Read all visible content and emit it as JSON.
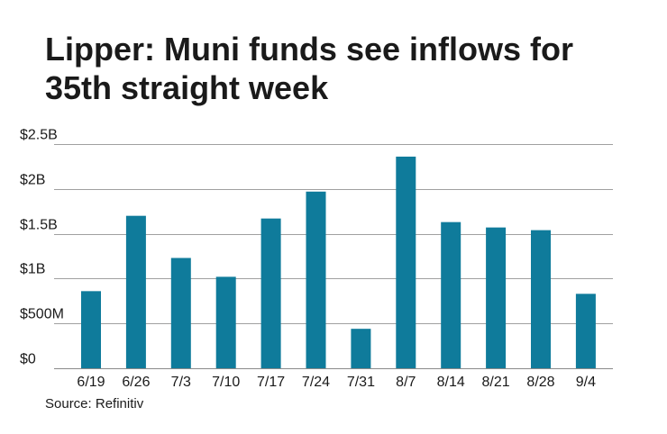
{
  "chart_data": {
    "type": "bar",
    "title": "Lipper: Muni funds see inflows for 35th straight week",
    "categories": [
      "6/19",
      "6/26",
      "7/3",
      "7/10",
      "7/17",
      "7/24",
      "7/31",
      "8/7",
      "8/14",
      "8/21",
      "8/28",
      "9/4"
    ],
    "values": [
      0.86,
      1.7,
      1.23,
      1.02,
      1.67,
      1.97,
      0.44,
      2.36,
      1.63,
      1.57,
      1.54,
      0.83
    ],
    "unit": "billions of dollars",
    "ylim": [
      0,
      2.5
    ],
    "yticks": [
      {
        "value": 0,
        "label": "$0"
      },
      {
        "value": 0.5,
        "label": "$500M"
      },
      {
        "value": 1.0,
        "label": "$1B"
      },
      {
        "value": 1.5,
        "label": "$1.5B"
      },
      {
        "value": 2.0,
        "label": "$2B"
      },
      {
        "value": 2.5,
        "label": "$2.5B"
      }
    ],
    "xlabel": "",
    "ylabel": "",
    "grid": true,
    "bar_color": "#0f7b9b",
    "source": "Source: Refinitiv"
  }
}
